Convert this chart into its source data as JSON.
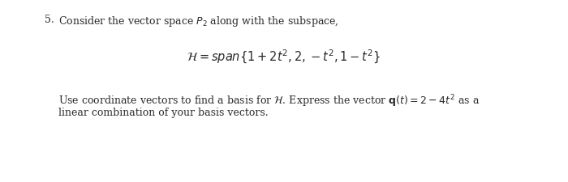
{
  "background_color": "#ffffff",
  "number": "5. ",
  "line1": "Consider the vector space $P_2$ along with the subspace,",
  "line2": "$\\mathcal{H} = span\\left\\{1 + 2t^2, 2, -t^2, 1 - t^2\\right\\}$",
  "line3": "Use coordinate vectors to find a basis for $\\mathcal{H}$. Express the vector $\\mathbf{q}(t) = 2 - 4t^2$ as a",
  "line4": "linear combination of your basis vectors.",
  "text_color": "#2a2a2a",
  "fontsize_main": 9.0,
  "fontsize_math": 10.5
}
